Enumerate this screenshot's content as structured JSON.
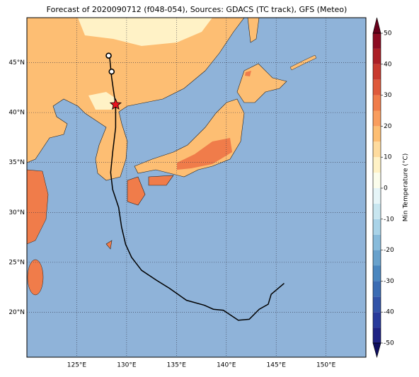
{
  "chart_data": {
    "type": "map",
    "title": "Forecast of 2020090712 (f048-054), Sources: GDACS (TC track), GFS (Meteo)",
    "xlim": [
      120,
      154
    ],
    "ylim": [
      15.5,
      49.5
    ],
    "xticks": [
      {
        "value": 125,
        "label": "125°E"
      },
      {
        "value": 130,
        "label": "130°E"
      },
      {
        "value": 135,
        "label": "135°E"
      },
      {
        "value": 140,
        "label": "140°E"
      },
      {
        "value": 145,
        "label": "145°E"
      },
      {
        "value": 150,
        "label": "150°E"
      }
    ],
    "yticks": [
      {
        "value": 20,
        "label": "20°N"
      },
      {
        "value": 25,
        "label": "25°N"
      },
      {
        "value": 30,
        "label": "30°N"
      },
      {
        "value": 35,
        "label": "35°N"
      },
      {
        "value": 40,
        "label": "40°N"
      },
      {
        "value": 45,
        "label": "45°N"
      }
    ],
    "grid": true,
    "track": {
      "color": "#000000",
      "x": [
        145.8,
        144.5,
        144.2,
        143.3,
        142.3,
        141.2,
        139.7,
        138.7,
        137.8,
        136.0,
        134.3,
        133.0,
        131.5,
        130.5,
        129.9,
        129.5,
        129.2,
        128.6,
        128.4,
        128.6,
        128.9,
        128.9,
        128.7,
        128.5,
        128.3
      ],
      "y": [
        22.9,
        21.8,
        20.8,
        20.3,
        19.3,
        19.2,
        20.2,
        20.3,
        20.7,
        21.2,
        22.4,
        23.2,
        24.2,
        25.5,
        26.8,
        28.5,
        30.5,
        32.3,
        34.0,
        36.0,
        38.5,
        40.8,
        42.1,
        43.5,
        45.5
      ]
    },
    "markers": [
      {
        "shape": "star",
        "color": "#e8141e",
        "x": 128.9,
        "y": 40.8
      },
      {
        "shape": "circle",
        "color": "#ffffff",
        "x": 128.5,
        "y": 44.1
      },
      {
        "shape": "circle",
        "color": "#ffffff",
        "x": 128.2,
        "y": 45.7
      }
    ],
    "colorbar": {
      "label": "Min Temperature (°C)",
      "lim": [
        -50,
        50
      ],
      "ticks": [
        -50,
        -40,
        -30,
        -20,
        -10,
        0,
        10,
        20,
        30,
        40,
        50
      ],
      "colors": [
        "#1f2384",
        "#283a9b",
        "#3253a8",
        "#3b6cb3",
        "#4a86bf",
        "#68a1cc",
        "#88bbdb",
        "#a9d3e8",
        "#c8e6f0",
        "#e6f5f8",
        "#fbfdec",
        "#fff2c6",
        "#fedb9e",
        "#fdbe73",
        "#f99d5e",
        "#f07c4a",
        "#df5a3b",
        "#c83a2f",
        "#ab1f26",
        "#8c0b22"
      ],
      "extend_colors": [
        "#0e0e5e",
        "#68001b"
      ]
    }
  }
}
